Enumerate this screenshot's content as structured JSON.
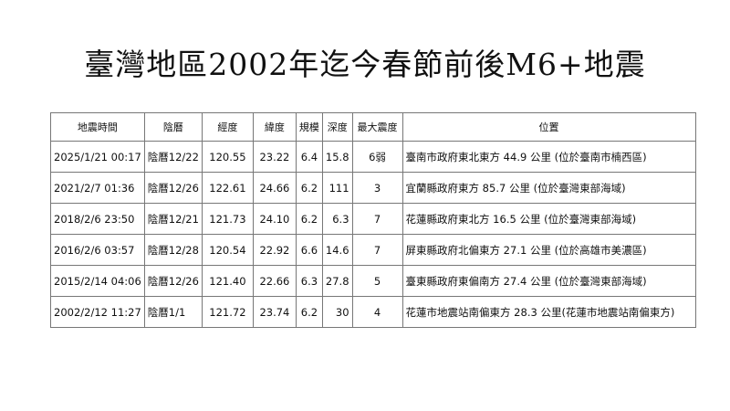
{
  "title": "臺灣地區2002年迄今春節前後M6+地震",
  "table": {
    "headers": [
      "地震時間",
      "陰曆",
      "經度",
      "緯度",
      "規模",
      "深度",
      "最大震度",
      "位置"
    ],
    "rows": [
      [
        "2025/1/21 00:17",
        "陰曆12/22",
        "120.55",
        "23.22",
        "6.4",
        "15.8",
        "6弱",
        "臺南市政府東北東方 44.9 公里 (位於臺南市楠西區)"
      ],
      [
        "2021/2/7 01:36",
        "陰曆12/26",
        "122.61",
        "24.66",
        "6.2",
        "111",
        "3",
        "宜蘭縣政府東方 85.7 公里 (位於臺灣東部海域)"
      ],
      [
        "2018/2/6 23:50",
        "陰曆12/21",
        "121.73",
        "24.10",
        "6.2",
        "6.3",
        "7",
        "花蓮縣政府東北方 16.5 公里 (位於臺灣東部海域)"
      ],
      [
        "2016/2/6 03:57",
        "陰曆12/28",
        "120.54",
        "22.92",
        "6.6",
        "14.6",
        "7",
        "屏東縣政府北偏東方 27.1 公里 (位於高雄市美濃區)"
      ],
      [
        "2015/2/14 04:06",
        "陰曆12/26",
        "121.40",
        "22.66",
        "6.3",
        "27.8",
        "5",
        "臺東縣政府東偏南方 27.4 公里 (位於臺灣東部海域)"
      ],
      [
        "2002/2/12 11:27",
        "陰曆1/1",
        "121.72",
        "23.74",
        "6.2",
        "30",
        "4",
        "花蓮市地震站南偏東方 28.3 公里(花蓮市地震站南偏東方)"
      ]
    ]
  }
}
